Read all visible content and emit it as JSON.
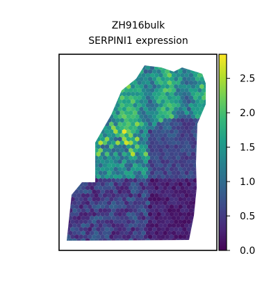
{
  "chart_data": {
    "type": "scatter",
    "title": "ZH916bulk",
    "subtitle": "SERPINI1 expression",
    "xlabel": "",
    "ylabel": "",
    "grid": false,
    "spots_rendered_as": "hexagonal spatial spots colored by expression",
    "colormap": "viridis",
    "colormap_stops": [
      "#440154",
      "#482878",
      "#3e4989",
      "#31688e",
      "#26828e",
      "#1f9e89",
      "#35b779",
      "#6ece58",
      "#b5de2b",
      "#fde725"
    ],
    "color_range": [
      0.0,
      2.85
    ],
    "colorbar": {
      "position": "right",
      "ticks": [
        0.0,
        0.5,
        1.0,
        1.5,
        2.0,
        2.5
      ],
      "tick_labels": [
        "0.0",
        "0.5",
        "1.0",
        "1.5",
        "2.0",
        "2.5"
      ]
    }
  }
}
